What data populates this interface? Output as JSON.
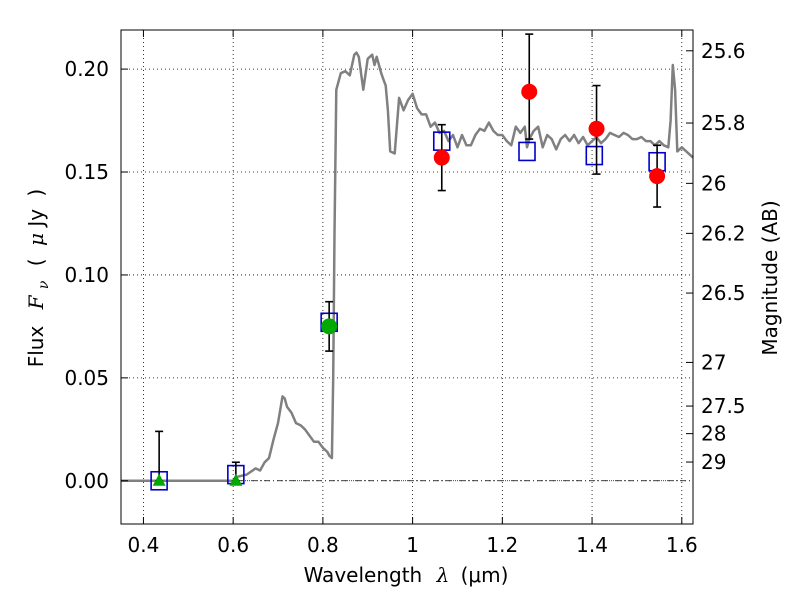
{
  "chart_data": {
    "type": "scatter",
    "x_axis": {
      "label_prefix": "Wavelength",
      "label_symbol": "λ",
      "label_units": "(μm)",
      "range": [
        0.35,
        1.625
      ],
      "ticks": [
        0.4,
        0.6,
        0.8,
        1.0,
        1.2,
        1.4,
        1.6
      ],
      "tick_labels": [
        "0.4",
        "0.6",
        "0.8",
        "1",
        "1.2",
        "1.4",
        "1.6"
      ]
    },
    "y_axis": {
      "label_prefix": "Flux",
      "label_symbol": "F",
      "label_subscript": "ν",
      "label_units_open": "(",
      "label_units_mu": "μ",
      "label_units_rest": "Jy",
      "label_units_close": ")",
      "range": [
        -0.021,
        0.219
      ],
      "ticks": [
        0.0,
        0.05,
        0.1,
        0.15,
        0.2
      ],
      "tick_labels": [
        "0.00",
        "0.05",
        "0.10",
        "0.15",
        "0.20"
      ]
    },
    "y2_axis": {
      "label": "Magnitude (AB)",
      "ticks": [
        {
          "label": "25.6",
          "flux": 0.2089
        },
        {
          "label": "25.8",
          "flux": 0.1738
        },
        {
          "label": "26",
          "flux": 0.1445
        },
        {
          "label": "26.2",
          "flux": 0.1202
        },
        {
          "label": "26.5",
          "flux": 0.0912
        },
        {
          "label": "27",
          "flux": 0.0575
        },
        {
          "label": "27.5",
          "flux": 0.0363
        },
        {
          "label": "28",
          "flux": 0.0229
        },
        {
          "label": "29",
          "flux": 0.0091
        }
      ]
    },
    "grid": true,
    "zero_line": true,
    "colors": {
      "sed": "#808080",
      "model_box": "#0000cc",
      "red_points": "#ff0000",
      "green_points": "#00aa00",
      "error_bars": "#000000"
    },
    "sed_curve": {
      "x": [
        0.35,
        0.6,
        0.61,
        0.63,
        0.65,
        0.66,
        0.67,
        0.68,
        0.69,
        0.7,
        0.71,
        0.715,
        0.72,
        0.73,
        0.74,
        0.75,
        0.76,
        0.77,
        0.78,
        0.79,
        0.8,
        0.81,
        0.815,
        0.82,
        0.823,
        0.826,
        0.83,
        0.84,
        0.85,
        0.86,
        0.87,
        0.875,
        0.88,
        0.89,
        0.9,
        0.91,
        0.915,
        0.92,
        0.93,
        0.935,
        0.94,
        0.945,
        0.95,
        0.96,
        0.97,
        0.98,
        0.99,
        1.0,
        1.01,
        1.02,
        1.03,
        1.04,
        1.05,
        1.06,
        1.07,
        1.08,
        1.09,
        1.1,
        1.11,
        1.12,
        1.13,
        1.14,
        1.15,
        1.16,
        1.17,
        1.18,
        1.19,
        1.2,
        1.21,
        1.22,
        1.23,
        1.24,
        1.25,
        1.255,
        1.26,
        1.27,
        1.28,
        1.29,
        1.3,
        1.31,
        1.32,
        1.33,
        1.34,
        1.35,
        1.36,
        1.37,
        1.38,
        1.39,
        1.4,
        1.41,
        1.42,
        1.43,
        1.44,
        1.45,
        1.46,
        1.47,
        1.48,
        1.49,
        1.5,
        1.51,
        1.52,
        1.53,
        1.54,
        1.55,
        1.56,
        1.57,
        1.575,
        1.58,
        1.585,
        1.59,
        1.6,
        1.61,
        1.625
      ],
      "y": [
        0.0,
        0.0,
        0.002,
        0.003,
        0.006,
        0.005,
        0.009,
        0.011,
        0.02,
        0.028,
        0.041,
        0.04,
        0.036,
        0.033,
        0.028,
        0.027,
        0.025,
        0.022,
        0.019,
        0.019,
        0.016,
        0.014,
        0.012,
        0.011,
        0.05,
        0.12,
        0.19,
        0.198,
        0.199,
        0.197,
        0.207,
        0.208,
        0.206,
        0.19,
        0.205,
        0.207,
        0.202,
        0.206,
        0.198,
        0.195,
        0.192,
        0.18,
        0.16,
        0.159,
        0.186,
        0.18,
        0.185,
        0.188,
        0.181,
        0.178,
        0.178,
        0.172,
        0.174,
        0.169,
        0.17,
        0.165,
        0.168,
        0.162,
        0.168,
        0.163,
        0.163,
        0.168,
        0.171,
        0.17,
        0.174,
        0.17,
        0.168,
        0.168,
        0.165,
        0.163,
        0.172,
        0.169,
        0.172,
        0.162,
        0.166,
        0.17,
        0.172,
        0.162,
        0.168,
        0.166,
        0.161,
        0.166,
        0.168,
        0.165,
        0.168,
        0.164,
        0.167,
        0.163,
        0.165,
        0.167,
        0.164,
        0.166,
        0.169,
        0.168,
        0.167,
        0.169,
        0.168,
        0.166,
        0.166,
        0.167,
        0.165,
        0.165,
        0.163,
        0.165,
        0.163,
        0.162,
        0.175,
        0.202,
        0.19,
        0.16,
        0.162,
        0.16,
        0.157
      ]
    },
    "model_boxes": [
      {
        "x": 0.435,
        "y": 0.0
      },
      {
        "x": 0.606,
        "y": 0.003
      },
      {
        "x": 0.814,
        "y": 0.077
      },
      {
        "x": 1.065,
        "y": 0.165
      },
      {
        "x": 1.255,
        "y": 0.16
      },
      {
        "x": 1.405,
        "y": 0.158
      },
      {
        "x": 1.545,
        "y": 0.155
      }
    ],
    "red_points": [
      {
        "x": 1.065,
        "y": 0.157,
        "err_low": 0.016,
        "err_high": 0.016
      },
      {
        "x": 1.26,
        "y": 0.189,
        "err_low": 0.023,
        "err_high": 0.028
      },
      {
        "x": 1.41,
        "y": 0.171,
        "err_low": 0.022,
        "err_high": 0.021
      },
      {
        "x": 1.545,
        "y": 0.148,
        "err_low": 0.015,
        "err_high": 0.015
      }
    ],
    "green_circles": [
      {
        "x": 0.814,
        "y": 0.075,
        "err_low": 0.012,
        "err_high": 0.012
      }
    ],
    "green_triangles": [
      {
        "x": 0.435,
        "y": 0.0,
        "err_low": 0.0,
        "err_high": 0.024
      },
      {
        "x": 0.606,
        "y": 0.0,
        "err_low": 0.0,
        "err_high": 0.009
      }
    ]
  }
}
